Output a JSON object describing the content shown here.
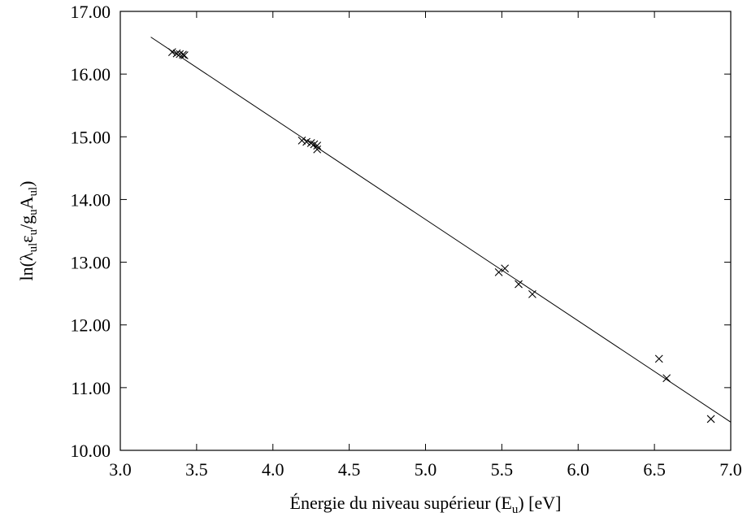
{
  "chart_data": {
    "type": "scatter",
    "title": "",
    "xlabel": {
      "parts": [
        {
          "t": "Énergie du niveau supérieur (E"
        },
        {
          "t": "u",
          "sub": true
        },
        {
          "t": ") [eV]"
        }
      ]
    },
    "ylabel": {
      "parts": [
        {
          "t": "ln(λ"
        },
        {
          "t": "ul",
          "sub": true
        },
        {
          "t": "ε"
        },
        {
          "t": "u",
          "sub": true
        },
        {
          "t": "/g"
        },
        {
          "t": "u",
          "sub": true
        },
        {
          "t": "A"
        },
        {
          "t": "ul",
          "sub": true
        },
        {
          "t": ")"
        }
      ]
    },
    "xlim": [
      3.0,
      7.0
    ],
    "ylim": [
      10.0,
      17.0
    ],
    "xticks": [
      3.0,
      3.5,
      4.0,
      4.5,
      5.0,
      5.5,
      6.0,
      6.5,
      7.0
    ],
    "xtick_labels": [
      "3.0",
      "3.5",
      "4.0",
      "4.5",
      "5.0",
      "5.5",
      "6.0",
      "6.5",
      "7.0"
    ],
    "yticks": [
      10.0,
      11.0,
      12.0,
      13.0,
      14.0,
      15.0,
      16.0,
      17.0
    ],
    "ytick_labels": [
      "10.00",
      "11.00",
      "12.00",
      "13.00",
      "14.00",
      "15.00",
      "16.00",
      "17.00"
    ],
    "grid": false,
    "marker": "x",
    "series": [
      {
        "points": [
          [
            3.34,
            16.35
          ],
          [
            3.37,
            16.33
          ],
          [
            3.39,
            16.32
          ],
          [
            3.41,
            16.31
          ],
          [
            3.42,
            16.3
          ],
          [
            4.19,
            14.94
          ],
          [
            4.22,
            14.92
          ],
          [
            4.25,
            14.9
          ],
          [
            4.27,
            14.88
          ],
          [
            4.29,
            14.86
          ],
          [
            4.29,
            14.8
          ],
          [
            5.48,
            12.84
          ],
          [
            5.52,
            12.9
          ],
          [
            5.61,
            12.65
          ],
          [
            5.7,
            12.49
          ],
          [
            6.53,
            11.46
          ],
          [
            6.58,
            11.15
          ],
          [
            6.87,
            10.5
          ]
        ]
      }
    ],
    "fit_line": {
      "x": [
        3.2,
        7.0
      ],
      "y": [
        16.59,
        10.45
      ]
    }
  }
}
